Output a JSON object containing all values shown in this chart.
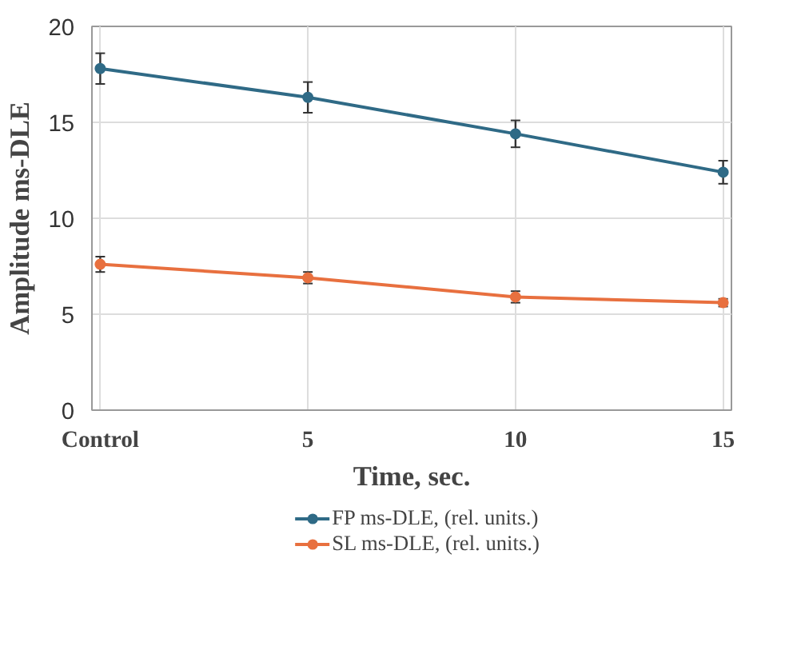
{
  "chart_data": {
    "type": "line",
    "xlabel": "Time, sec.",
    "ylabel": "Amplitude ms-DLE",
    "categories": [
      "Control",
      "5",
      "10",
      "15"
    ],
    "series": [
      {
        "name": "FP ms-DLE, (rel. units.)",
        "color": "#2f6a86",
        "values": [
          17.8,
          16.3,
          14.4,
          12.4
        ],
        "errors": [
          0.8,
          0.8,
          0.7,
          0.6
        ]
      },
      {
        "name": "SL ms-DLE, (rel. units.)",
        "color": "#e8703f",
        "values": [
          7.6,
          6.9,
          5.9,
          5.6
        ],
        "errors": [
          0.4,
          0.3,
          0.3,
          0.2
        ]
      }
    ],
    "ylim": [
      0,
      20
    ],
    "yticks": [
      0,
      5,
      10,
      15,
      20
    ],
    "grid": true,
    "legend": "bottom",
    "marker": "circle",
    "line_style": "solid"
  }
}
